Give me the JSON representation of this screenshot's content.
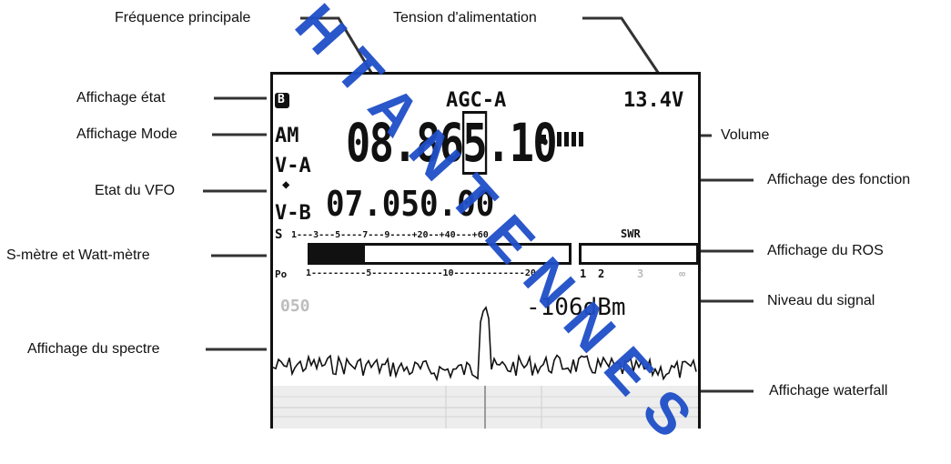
{
  "labels": {
    "freq_main": "Fréquence principale",
    "supply_voltage": "Tension d'alimentation",
    "status_display": "Affichage état",
    "mode_display": "Affichage Mode",
    "volume": "Volume",
    "function_display": "Affichage des fonction",
    "vfo_state": "Etat du VFO",
    "s_meter": "S-mètre et Watt-mètre",
    "swr_display": "Affichage du ROS",
    "signal_level": "Niveau du signal",
    "spectrum": "Affichage du spectre",
    "waterfall": "Affichage waterfall"
  },
  "screen": {
    "status_icon": "B",
    "agc": "AGC-A",
    "voltage": "13.4V",
    "mode": "AM",
    "vfo_a_label": "V-A",
    "vfo_b_label": "V-B",
    "freq_a_part1": "08.86",
    "freq_a_cursor_digit": "5",
    "freq_a_part2": ".10",
    "freq_b": "07.050.00",
    "s_label": "S",
    "s_scale": "1---3---5----7---9----+20--+40---+60",
    "po_label": "Po",
    "po_scale": "1----------5-------------10-------------20",
    "swr_label": "SWR",
    "swr_scale": [
      "1",
      "2",
      "3",
      "∞"
    ],
    "dim_value": "050",
    "dbm_reading": "-106dBm",
    "s_meter_level": 0.21
  },
  "watermark": "HTANTENNES",
  "colors": {
    "watermark": "#1f4fc8",
    "lcd_ink": "#111111",
    "lines": "#333333"
  }
}
